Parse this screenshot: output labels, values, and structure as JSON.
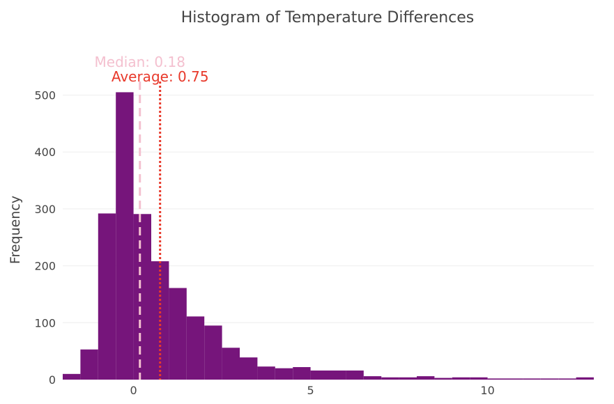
{
  "chart_data": {
    "type": "bar",
    "title": "Histogram of Temperature Differences",
    "xlabel": "",
    "ylabel": "Frequency",
    "xlim": [
      -2,
      13
    ],
    "ylim": [
      0,
      530
    ],
    "x_ticks": [
      0,
      5,
      10
    ],
    "y_ticks": [
      0,
      100,
      200,
      300,
      400,
      500
    ],
    "bin_width": 0.5,
    "bins": [
      {
        "start": -2.0,
        "value": 10
      },
      {
        "start": -1.5,
        "value": 53
      },
      {
        "start": -1.0,
        "value": 292
      },
      {
        "start": -0.5,
        "value": 505
      },
      {
        "start": 0.0,
        "value": 291
      },
      {
        "start": 0.5,
        "value": 208
      },
      {
        "start": 1.0,
        "value": 161
      },
      {
        "start": 1.5,
        "value": 111
      },
      {
        "start": 2.0,
        "value": 95
      },
      {
        "start": 2.5,
        "value": 56
      },
      {
        "start": 3.0,
        "value": 39
      },
      {
        "start": 3.5,
        "value": 23
      },
      {
        "start": 4.0,
        "value": 20
      },
      {
        "start": 4.5,
        "value": 22
      },
      {
        "start": 5.0,
        "value": 16
      },
      {
        "start": 5.5,
        "value": 16
      },
      {
        "start": 6.0,
        "value": 16
      },
      {
        "start": 6.5,
        "value": 6
      },
      {
        "start": 7.0,
        "value": 4
      },
      {
        "start": 7.5,
        "value": 4
      },
      {
        "start": 8.0,
        "value": 6
      },
      {
        "start": 8.5,
        "value": 3
      },
      {
        "start": 9.0,
        "value": 4
      },
      {
        "start": 9.5,
        "value": 4
      },
      {
        "start": 10.0,
        "value": 2
      },
      {
        "start": 10.5,
        "value": 2
      },
      {
        "start": 11.0,
        "value": 2
      },
      {
        "start": 11.5,
        "value": 2
      },
      {
        "start": 12.0,
        "value": 2
      },
      {
        "start": 12.5,
        "value": 4
      }
    ],
    "bar_color": "#76157b",
    "grid": true,
    "reference_lines": [
      {
        "name": "median",
        "label": "Median: 0.18",
        "value": 0.18,
        "color": "#f4c0cf",
        "dash": "dashed"
      },
      {
        "name": "average",
        "label": "Average: 0.75",
        "value": 0.75,
        "color": "#e8392b",
        "dash": "dotted"
      }
    ]
  }
}
